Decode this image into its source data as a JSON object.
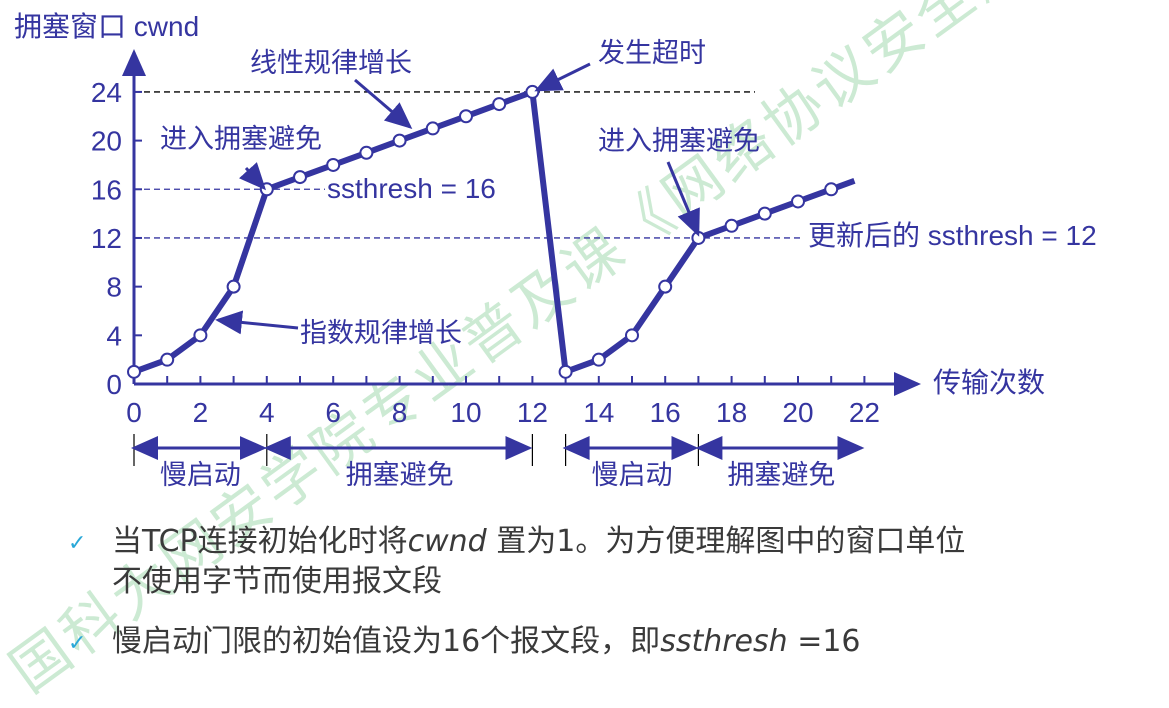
{
  "chart_data": {
    "type": "line",
    "ylabel": "拥塞窗口 cwnd",
    "xlabel": "传输次数",
    "xlim": [
      0,
      22
    ],
    "ylim": [
      0,
      24
    ],
    "x_ticks": [
      "0",
      "2",
      "4",
      "6",
      "8",
      "10",
      "12",
      "14",
      "16",
      "18",
      "20",
      "22"
    ],
    "y_ticks": [
      "0",
      "4",
      "8",
      "12",
      "16",
      "20",
      "24"
    ],
    "series": [
      {
        "x": [
          0,
          1,
          2,
          3,
          4,
          5,
          6,
          7,
          8,
          9,
          10,
          11,
          12
        ],
        "values": [
          1,
          2,
          4,
          8,
          16,
          17,
          18,
          19,
          20,
          21,
          22,
          23,
          24
        ]
      },
      {
        "x": [
          13,
          14,
          15,
          16,
          17,
          18,
          19,
          20,
          21
        ],
        "values": [
          1,
          2,
          4,
          8,
          12,
          13,
          14,
          15,
          16
        ]
      }
    ],
    "reference_lines": [
      {
        "y": 24,
        "color": "#000000"
      },
      {
        "y": 16,
        "label": "ssthresh = 16",
        "color": "#3535a0"
      },
      {
        "y": 12,
        "label": "更新后的 ssthresh = 12",
        "color": "#3535a0"
      }
    ],
    "annotations": {
      "linear": "线性规律增长",
      "enter_ca_1": "进入拥塞避免",
      "exponential": "指数规律增长",
      "timeout": "发生超时",
      "enter_ca_2": "进入拥塞避免"
    },
    "phases": [
      {
        "label": "慢启动",
        "from": 0,
        "to": 4
      },
      {
        "label": "拥塞避免",
        "from": 4,
        "to": 12
      },
      {
        "label": "慢启动",
        "from": 13,
        "to": 17
      },
      {
        "label": "拥塞避免",
        "from": 17,
        "to": 22
      }
    ],
    "color": "#3535a0"
  },
  "bullets": [
    {
      "p1": "当TCP连接初始化时将",
      "em": "cwnd",
      "p2": " 置为1。为方便理解图中的窗口单位",
      "line2": "不使用字节而使用报文段"
    },
    {
      "p1": "慢启动门限的初始值设为16个报文段，即",
      "em": "ssthresh",
      "p2": " =16"
    }
  ],
  "watermark": "国科大网安学院专业普及课《网络协议安全》"
}
